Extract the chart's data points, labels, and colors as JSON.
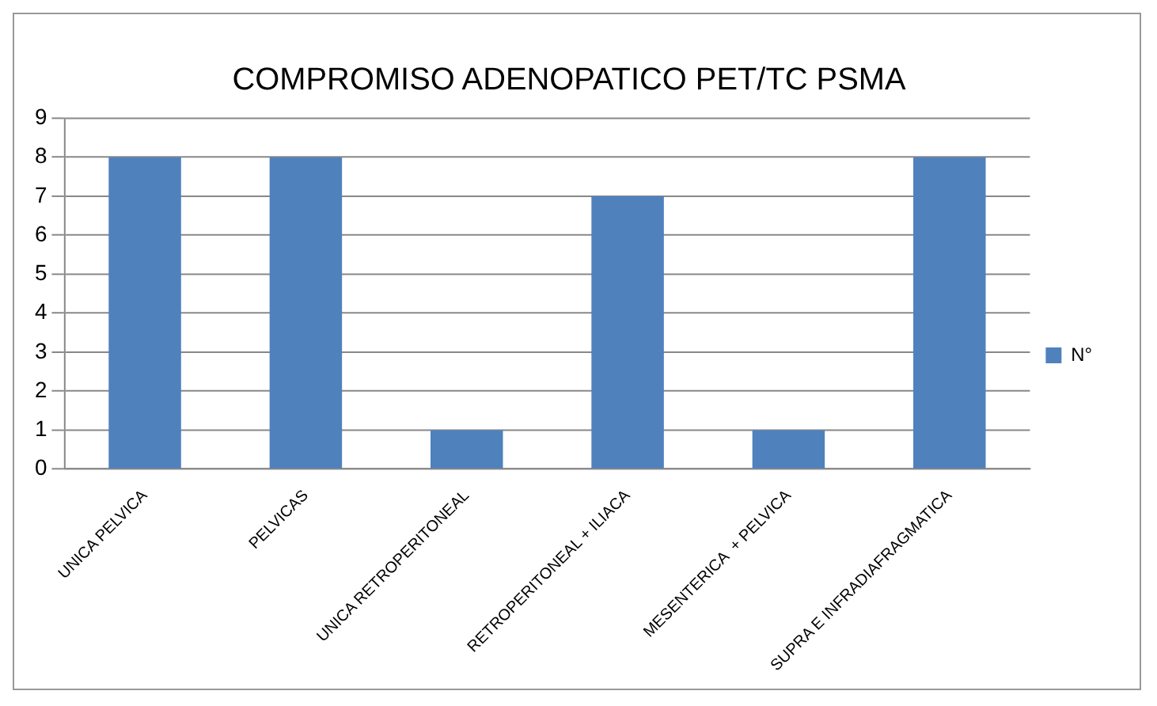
{
  "chart_data": {
    "type": "bar",
    "title": "COMPROMISO ADENOPATICO PET/TC PSMA",
    "categories": [
      "UNICA PELVICA",
      "PELVICAS",
      "UNICA RETROPERITONEAL",
      "RETROPERITONEAL + ILIACA",
      "MESENTERICA  + PELVICA",
      "SUPRA E INFRADIAFRAGMATICA"
    ],
    "series": [
      {
        "name": "N°",
        "color": "#4f81bd",
        "values": [
          8,
          8,
          1,
          7,
          1,
          8
        ]
      }
    ],
    "ylim": [
      0,
      9
    ],
    "yticks": [
      0,
      1,
      2,
      3,
      4,
      5,
      6,
      7,
      8,
      9
    ],
    "grid": "y",
    "legend": "right"
  }
}
